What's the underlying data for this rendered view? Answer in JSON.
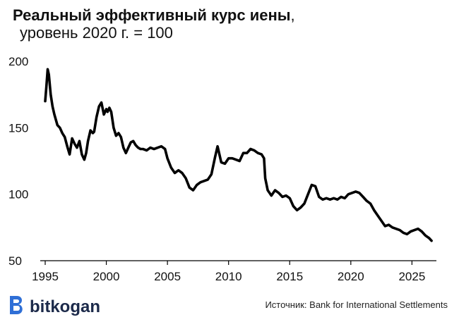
{
  "chart_data": {
    "type": "line",
    "title_bold": "Реальный эффективный курс иены",
    "title_comma": ",",
    "subtitle": "уровень 2020 г. = 100",
    "xlabel": "",
    "ylabel": "",
    "xlim": [
      1995,
      2027
    ],
    "ylim": [
      50,
      200
    ],
    "x_ticks": [
      1995,
      2000,
      2005,
      2010,
      2015,
      2020,
      2025
    ],
    "y_ticks": [
      50,
      100,
      150,
      200
    ],
    "grid": false,
    "series": [
      {
        "color": "#000000",
        "x": [
          1995.0,
          1995.1,
          1995.2,
          1995.3,
          1995.45,
          1995.6,
          1995.75,
          1996.0,
          1996.2,
          1996.4,
          1996.6,
          1996.8,
          1997.0,
          1997.2,
          1997.4,
          1997.6,
          1997.8,
          1998.0,
          1998.2,
          1998.35,
          1998.5,
          1998.7,
          1998.9,
          1999.0,
          1999.2,
          1999.4,
          1999.6,
          1999.8,
          2000.0,
          2000.1,
          2000.25,
          2000.4,
          2000.6,
          2000.8,
          2001.0,
          2001.2,
          2001.4,
          2001.6,
          2001.8,
          2002.0,
          2002.2,
          2002.4,
          2002.6,
          2002.8,
          2003.0,
          2003.3,
          2003.6,
          2003.9,
          2004.2,
          2004.5,
          2004.8,
          2005.0,
          2005.3,
          2005.6,
          2005.9,
          2006.2,
          2006.5,
          2006.8,
          2007.1,
          2007.4,
          2007.7,
          2008.0,
          2008.3,
          2008.6,
          2008.9,
          2009.1,
          2009.4,
          2009.7,
          2010.0,
          2010.3,
          2010.6,
          2010.9,
          2011.2,
          2011.5,
          2011.8,
          2012.1,
          2012.4,
          2012.7,
          2012.9,
          2013.0,
          2013.2,
          2013.5,
          2013.8,
          2014.1,
          2014.4,
          2014.7,
          2015.0,
          2015.3,
          2015.6,
          2015.9,
          2016.2,
          2016.5,
          2016.8,
          2017.1,
          2017.4,
          2017.7,
          2018.0,
          2018.3,
          2018.6,
          2018.9,
          2019.2,
          2019.5,
          2019.8,
          2020.1,
          2020.4,
          2020.7,
          2021.0,
          2021.3,
          2021.6,
          2021.9,
          2022.2,
          2022.5,
          2022.8,
          2023.1,
          2023.4,
          2023.7,
          2024.0,
          2024.3,
          2024.6,
          2024.9,
          2025.2,
          2025.5,
          2025.8,
          2026.1,
          2026.4,
          2026.6
        ],
        "y": [
          170,
          181,
          194,
          190,
          175,
          166,
          160,
          152,
          150,
          146,
          143,
          136,
          130,
          142,
          138,
          135,
          140,
          130,
          126,
          131,
          140,
          148,
          146,
          147,
          158,
          166,
          169,
          160,
          164,
          162,
          165,
          162,
          150,
          144,
          146,
          143,
          135,
          131,
          135,
          139,
          140,
          137,
          135,
          134,
          134,
          133,
          135,
          134,
          135,
          136,
          134,
          127,
          120,
          116,
          118,
          116,
          112,
          105,
          103,
          107,
          109,
          110,
          111,
          115,
          128,
          136,
          124,
          123,
          127,
          127,
          126,
          125,
          131,
          131,
          134,
          133,
          131,
          130,
          127,
          112,
          103,
          99,
          103,
          101,
          98,
          99,
          97,
          91,
          88,
          90,
          93,
          100,
          107,
          106,
          98,
          96,
          97,
          96,
          97,
          96,
          98,
          97,
          100,
          101,
          102,
          101,
          98,
          95,
          93,
          88,
          84,
          80,
          76,
          77,
          75,
          74,
          73,
          71,
          70,
          72,
          73,
          74,
          72,
          69,
          67,
          65
        ]
      }
    ]
  },
  "source": "Источник: Bank for International Settlements",
  "logo": {
    "text": "bitkogan",
    "icon": "bitkogan-b-logo-icon",
    "color": "#2f6fd6"
  }
}
